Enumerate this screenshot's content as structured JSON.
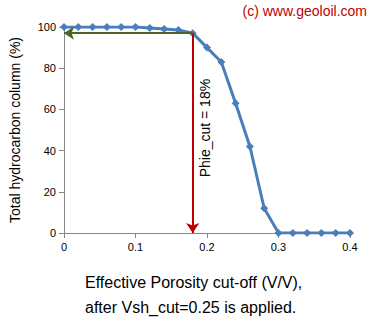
{
  "chart_data": {
    "type": "line",
    "x": [
      0,
      0.02,
      0.04,
      0.06,
      0.08,
      0.1,
      0.12,
      0.14,
      0.16,
      0.18,
      0.2,
      0.22,
      0.24,
      0.26,
      0.28,
      0.3,
      0.32,
      0.34,
      0.36,
      0.38,
      0.4
    ],
    "values": [
      100,
      100,
      100,
      100,
      100,
      100,
      99.5,
      99,
      98.5,
      97,
      90,
      83,
      63,
      42,
      12,
      0,
      0,
      0,
      0,
      0,
      0
    ],
    "color": "#4a7ebb",
    "marker": "diamond",
    "xlabel": "Effective Porosity cut-off (V/V),\nafter Vsh_cut=0.25 is applied.",
    "ylabel": "Total hydrocarbon column (%)",
    "xlim": [
      0,
      0.4
    ],
    "xticks": [
      0,
      0.1,
      0.2,
      0.3,
      0.4
    ],
    "ylim": [
      0,
      100
    ],
    "yticks": [
      0,
      20,
      40,
      60,
      80,
      100
    ],
    "grid": false,
    "annotations": [
      {
        "text": "(c) www.geoloil.com",
        "color": "#c00000"
      }
    ],
    "cutoff": {
      "label": "Phie_cut = 18%",
      "x": 0.18,
      "y": 97,
      "color": "#c00000",
      "read_color": "#4f6228"
    }
  }
}
